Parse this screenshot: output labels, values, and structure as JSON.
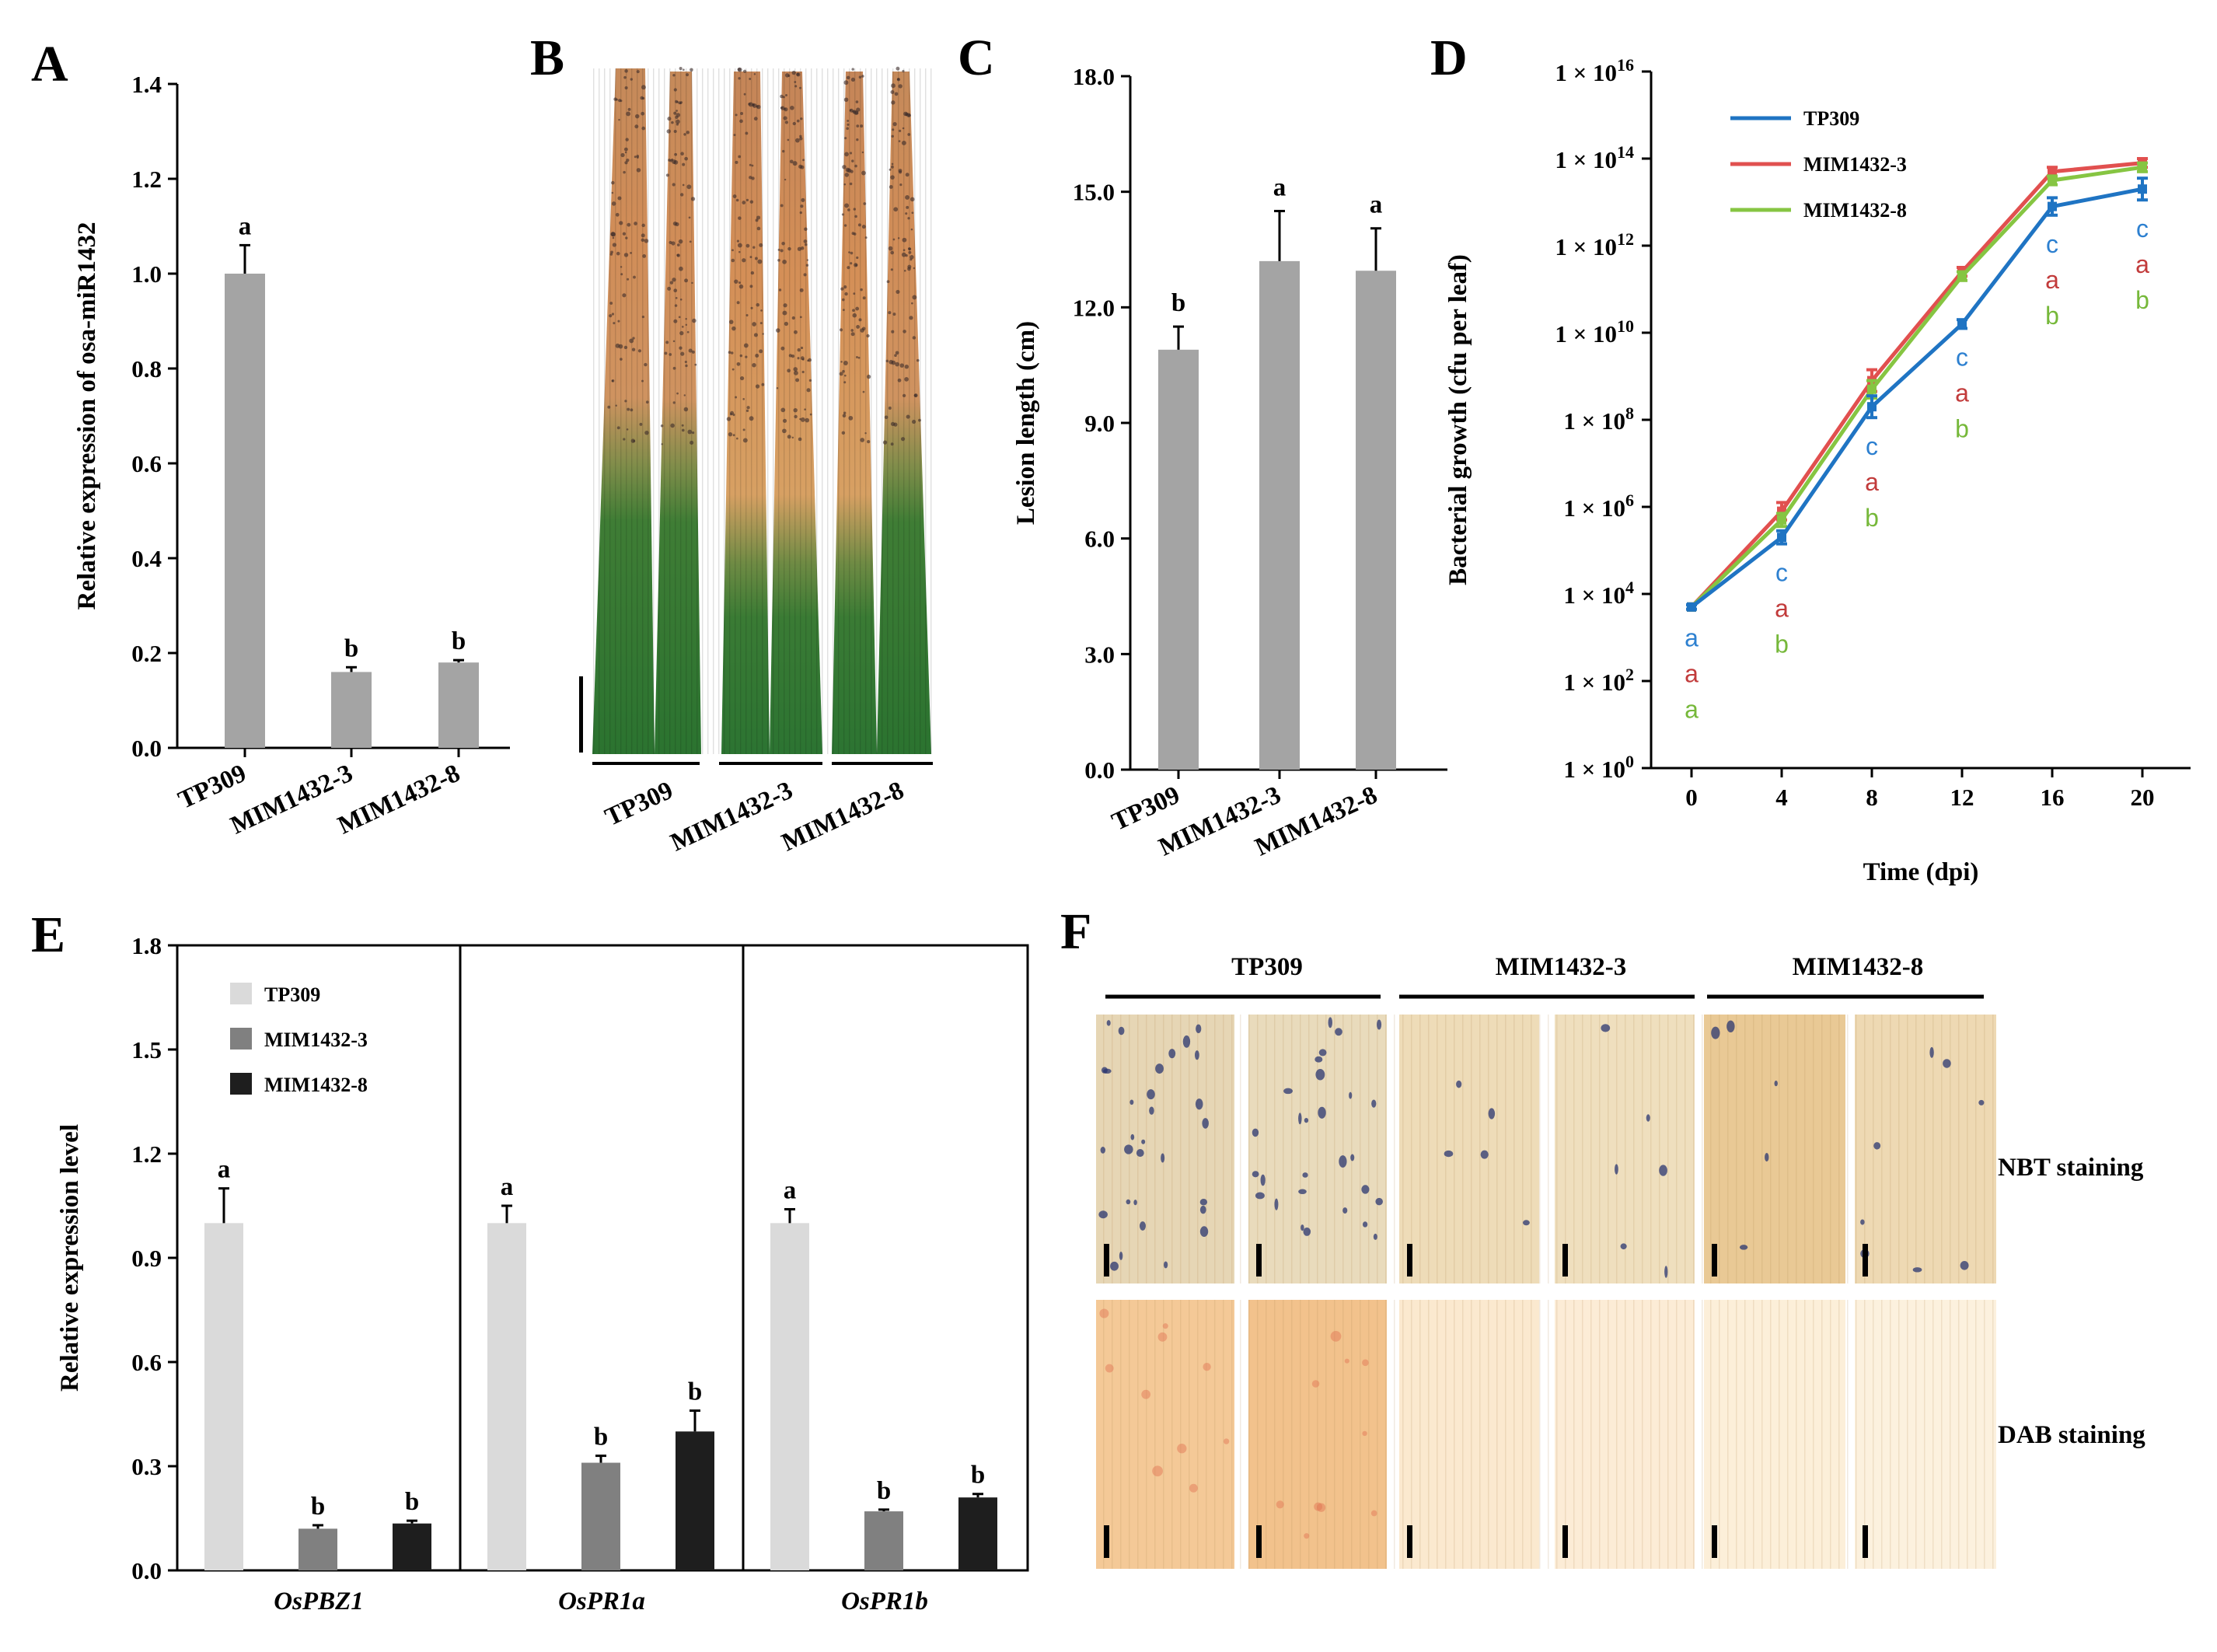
{
  "panels": {
    "A": "A",
    "B": "B",
    "C": "C",
    "D": "D",
    "E": "E",
    "F": "F"
  },
  "colors": {
    "gray_bar": "#a4a4a4",
    "tp309": "#1f74c3",
    "mim3": "#e1504f",
    "mim8": "#86c542",
    "e_light": "#dadada",
    "e_mid": "#808080",
    "e_dark": "#1e1e1e",
    "sig_blue": "#2d80d0",
    "sig_red": "#c23b3b",
    "sig_green": "#76b83a"
  },
  "chart_data": [
    {
      "id": "A",
      "type": "bar",
      "categories": [
        "TP309",
        "MIM1432-3",
        "MIM1432-8"
      ],
      "values": [
        1.0,
        0.16,
        0.18
      ],
      "errors": [
        0.06,
        0.01,
        0.005
      ],
      "letters": [
        "a",
        "b",
        "b"
      ],
      "ylabel": "Relative expression of osa-miR1432",
      "ylim": [
        0,
        1.4
      ],
      "yticks": [
        "0.0",
        "0.2",
        "0.4",
        "0.6",
        "0.8",
        "1.0",
        "1.2",
        "1.4"
      ]
    },
    {
      "id": "C",
      "type": "bar",
      "categories": [
        "TP309",
        "MIM1432-3",
        "MIM1432-8"
      ],
      "values": [
        10.9,
        13.2,
        12.95
      ],
      "errors": [
        0.6,
        1.3,
        1.1
      ],
      "letters": [
        "b",
        "a",
        "a"
      ],
      "ylabel": "Lesion length (cm)",
      "ylim": [
        0,
        18
      ],
      "yticks": [
        "0.0",
        "3.0",
        "6.0",
        "9.0",
        "12.0",
        "15.0",
        "18.0"
      ]
    },
    {
      "id": "D",
      "type": "line",
      "yscale": "log",
      "x": [
        0,
        4,
        8,
        12,
        16,
        20
      ],
      "xticks": [
        "0",
        "4",
        "8",
        "12",
        "16",
        "20"
      ],
      "yticks_exp": [
        "0",
        "2",
        "4",
        "6",
        "8",
        "10",
        "12",
        "14",
        "16"
      ],
      "ytick_prefix": "1 × 10",
      "ylim_log10": [
        0,
        16
      ],
      "xlabel": "Time  (dpi)",
      "ylabel": "Bacterial growth (cfu per leaf)",
      "series": [
        {
          "name": "TP309",
          "log10": [
            3.7,
            5.3,
            8.3,
            10.2,
            12.9,
            13.3
          ],
          "err": [
            0.05,
            0.15,
            0.25,
            0.1,
            0.2,
            0.25
          ]
        },
        {
          "name": "MIM1432-3",
          "log10": [
            3.7,
            5.9,
            8.9,
            11.4,
            13.7,
            13.9
          ],
          "err": [
            0.05,
            0.2,
            0.25,
            0.1,
            0.1,
            0.1
          ]
        },
        {
          "name": "MIM1432-8",
          "log10": [
            3.7,
            5.7,
            8.7,
            11.3,
            13.5,
            13.8
          ],
          "err": [
            0.05,
            0.15,
            0.2,
            0.1,
            0.1,
            0.1
          ]
        }
      ],
      "sig": [
        [
          "a",
          "a",
          "a"
        ],
        [
          "c",
          "a",
          "b"
        ],
        [
          "c",
          "a",
          "b"
        ],
        [
          "c",
          "a",
          "b"
        ],
        [
          "c",
          "a",
          "b"
        ],
        [
          "c",
          "a",
          "b"
        ]
      ]
    },
    {
      "id": "E",
      "type": "bar",
      "groups": [
        "OsPBZ1",
        "OsPR1a",
        "OsPR1b"
      ],
      "series": [
        {
          "name": "TP309",
          "values": [
            1.0,
            1.0,
            1.0
          ],
          "errors": [
            0.1,
            0.05,
            0.04
          ],
          "letters": [
            "a",
            "a",
            "a"
          ]
        },
        {
          "name": "MIM1432-3",
          "values": [
            0.12,
            0.31,
            0.17
          ],
          "errors": [
            0.01,
            0.02,
            0.005
          ],
          "letters": [
            "b",
            "b",
            "b"
          ]
        },
        {
          "name": "MIM1432-8",
          "values": [
            0.135,
            0.4,
            0.21
          ],
          "errors": [
            0.008,
            0.06,
            0.01
          ],
          "letters": [
            "b",
            "b",
            "b"
          ]
        }
      ],
      "ylabel": "Relative expression level",
      "ylim": [
        0,
        1.8
      ],
      "yticks": [
        "0.0",
        "0.3",
        "0.6",
        "0.9",
        "1.2",
        "1.5",
        "1.8"
      ]
    }
  ],
  "photo_B": {
    "labels": [
      "TP309",
      "MIM1432-3",
      "MIM1432-8"
    ]
  },
  "photo_F": {
    "labels": [
      "TP309",
      "MIM1432-3",
      "MIM1432-8"
    ],
    "row_labels": [
      "NBT staining",
      "DAB staining"
    ]
  }
}
